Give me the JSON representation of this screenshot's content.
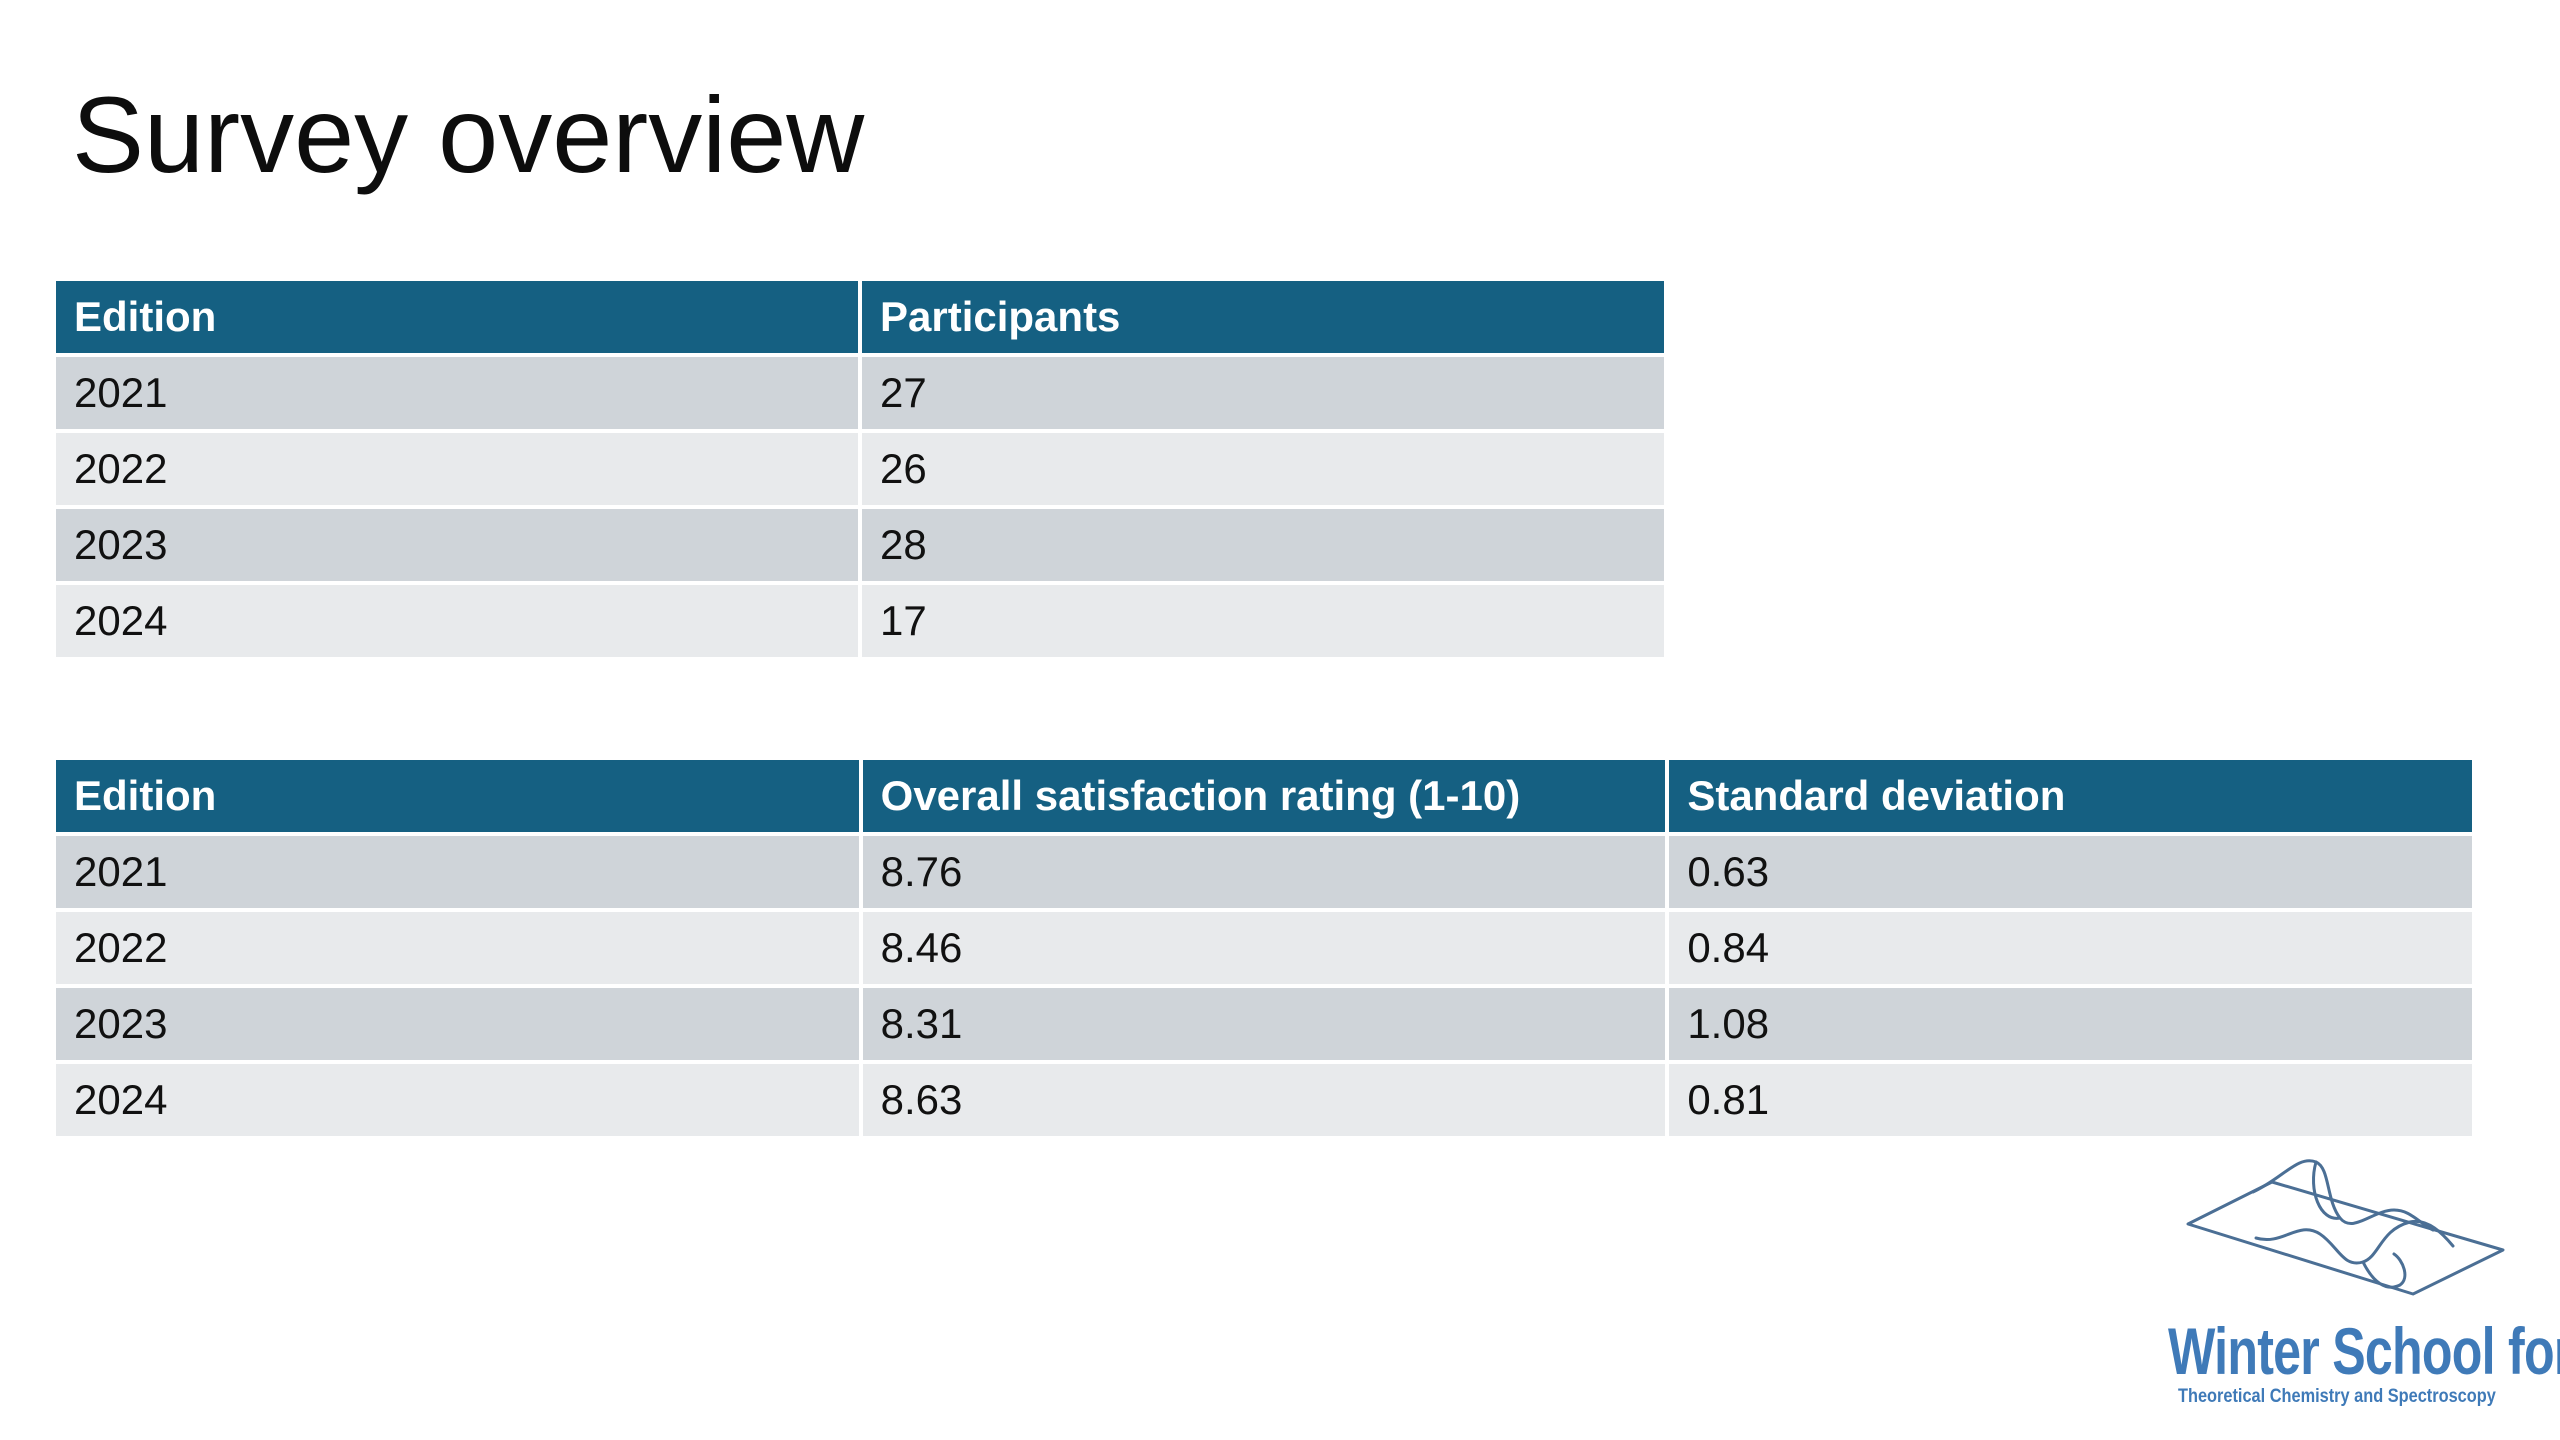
{
  "slide": {
    "title": "Survey overview"
  },
  "participants_table": {
    "headers": [
      "Edition",
      "Participants"
    ],
    "rows": [
      [
        "2021",
        "27"
      ],
      [
        "2022",
        "26"
      ],
      [
        "2023",
        "28"
      ],
      [
        "2024",
        "17"
      ]
    ]
  },
  "satisfaction_table": {
    "headers": [
      "Edition",
      "Overall satisfaction rating (1-10)",
      "Standard deviation"
    ],
    "rows": [
      [
        "2021",
        "8.76",
        "0.63"
      ],
      [
        "2022",
        "8.46",
        "0.84"
      ],
      [
        "2023",
        "8.31",
        "1.08"
      ],
      [
        "2024",
        "8.63",
        "0.81"
      ]
    ]
  },
  "logo": {
    "line1": "Winter School for",
    "line2": "Theoretical Chemistry and Spectroscopy"
  },
  "colors": {
    "header_bg": "#156082",
    "row_dark": "#cfd4d9",
    "row_light": "#e8eaec",
    "logo_blue": "#3f7ab8"
  }
}
